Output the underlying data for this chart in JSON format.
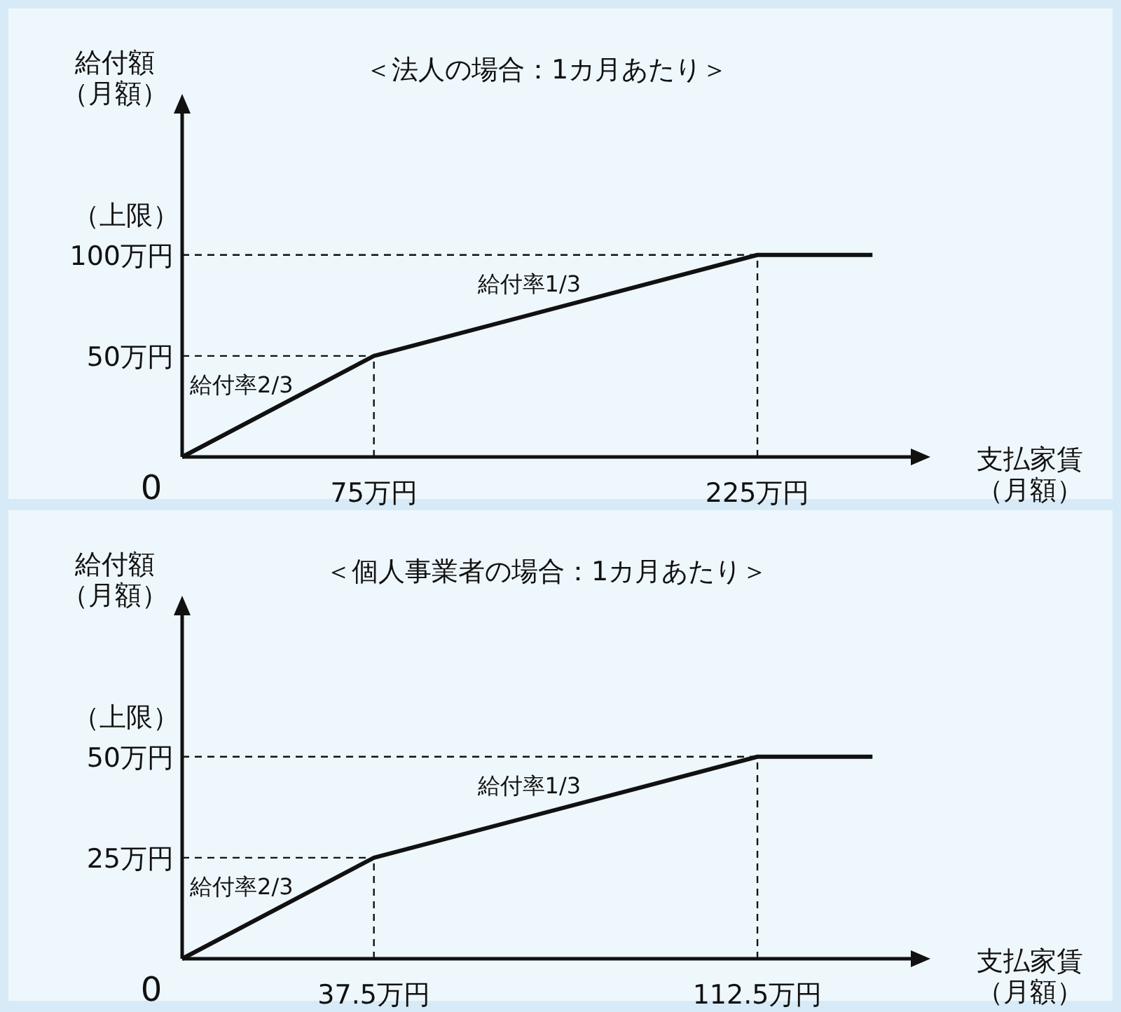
{
  "chart_data": [
    {
      "type": "line",
      "title": "＜法人の場合：1カ月あたり＞",
      "xlabel": "支払家賃（月額）",
      "ylabel": "給付額（月額）",
      "x": [
        0,
        75,
        225,
        270
      ],
      "series": [
        {
          "color": "#111111",
          "values": [
            0,
            50,
            100,
            100
          ]
        },
        {
          "color": "#111111",
          "x": [
            0,
            75
          ],
          "values": [
            50,
            50
          ],
          "line_style": "dashed"
        },
        {
          "color": "#111111",
          "x": [
            75,
            75
          ],
          "values": [
            0,
            50
          ],
          "line_style": "dashed"
        },
        {
          "color": "#111111",
          "x": [
            0,
            225
          ],
          "values": [
            100,
            100
          ],
          "line_style": "dashed"
        },
        {
          "color": "#111111",
          "x": [
            225,
            225
          ],
          "values": [
            0,
            100
          ],
          "line_style": "dashed"
        }
      ],
      "xlim": [
        0,
        285
      ],
      "ylim": [
        0,
        170
      ],
      "xticks": [
        {
          "value": 75,
          "label": "75万円"
        },
        {
          "value": 225,
          "label": "225万円"
        }
      ],
      "yticks": [
        {
          "value": 50,
          "label": "50万円"
        },
        {
          "value": 100,
          "label": "100万円"
        }
      ],
      "annotations": [
        "0",
        "（上限）",
        {
          "text": "給付率2/3",
          "x": 37.5,
          "y": 25
        },
        {
          "text": "給付率1/3",
          "x": 150,
          "y": 75
        }
      ]
    },
    {
      "type": "line",
      "title": "＜個人事業者の場合：1カ月あたり＞",
      "xlabel": "支払家賃（月額）",
      "ylabel": "給付額（月額）",
      "x": [
        0,
        37.5,
        112.5,
        135
      ],
      "series": [
        {
          "color": "#111111",
          "values": [
            0,
            25,
            50,
            50
          ]
        },
        {
          "color": "#111111",
          "x": [
            0,
            37.5
          ],
          "values": [
            25,
            25
          ],
          "line_style": "dashed"
        },
        {
          "color": "#111111",
          "x": [
            37.5,
            37.5
          ],
          "values": [
            0,
            25
          ],
          "line_style": "dashed"
        },
        {
          "color": "#111111",
          "x": [
            0,
            112.5
          ],
          "values": [
            50,
            50
          ],
          "line_style": "dashed"
        },
        {
          "color": "#111111",
          "x": [
            112.5,
            112.5
          ],
          "values": [
            0,
            50
          ],
          "line_style": "dashed"
        }
      ],
      "xlim": [
        0,
        142.5
      ],
      "ylim": [
        0,
        85
      ],
      "xticks": [
        {
          "value": 37.5,
          "label": "37.5万円"
        },
        {
          "value": 112.5,
          "label": "112.5万円"
        }
      ],
      "yticks": [
        {
          "value": 25,
          "label": "25万円"
        },
        {
          "value": 50,
          "label": "50万円"
        }
      ],
      "annotations": [
        "0",
        "（上限）",
        {
          "text": "給付率2/3",
          "x": 18.75,
          "y": 12.5
        },
        {
          "text": "給付率1/3",
          "x": 75,
          "y": 37.5
        }
      ]
    }
  ]
}
